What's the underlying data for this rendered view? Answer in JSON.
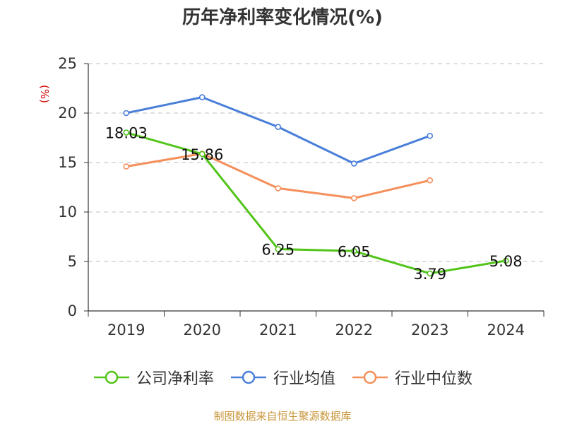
{
  "title": "历年净利率变化情况(%)",
  "unit": "(%)",
  "source": "制图数据来自恒生聚源数据库",
  "colors": {
    "company": "#52c41a",
    "avg": "#4a7fd9",
    "median": "#f58f5b",
    "axis": "#333333",
    "grid": "#cccccc"
  },
  "chart_data": {
    "type": "line",
    "categories": [
      "2019",
      "2020",
      "2021",
      "2022",
      "2023",
      "2024"
    ],
    "ylim": [
      0,
      25
    ],
    "yticks": [
      "0",
      "5",
      "10",
      "15",
      "20",
      "25"
    ],
    "grid": true,
    "legend_position": "bottom",
    "series": [
      {
        "name": "公司净利率",
        "values": [
          18.03,
          15.86,
          6.25,
          6.05,
          3.79,
          5.08
        ],
        "labels": [
          "18.03",
          "15.86",
          "6.25",
          "6.05",
          "3.79",
          "5.08"
        ]
      },
      {
        "name": "行业均值",
        "values": [
          20.0,
          21.6,
          18.6,
          14.9,
          17.7,
          null
        ]
      },
      {
        "name": "行业中位数",
        "values": [
          14.6,
          15.9,
          12.4,
          11.4,
          13.2,
          null
        ]
      }
    ]
  }
}
